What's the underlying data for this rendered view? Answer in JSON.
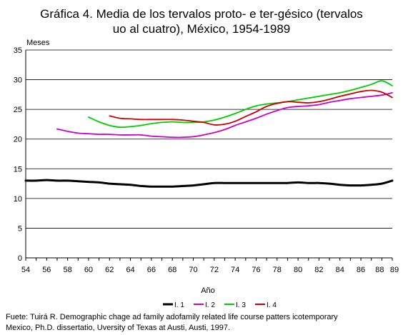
{
  "chart_data": {
    "type": "line",
    "title": "Gráfica 4.  Media de los tervalos proto- e ter-gésico (tervalos",
    "subtitle": "uo al cuatro), México, 1954-1989",
    "ylabel": "Meses",
    "xlabel": "Año",
    "ylim": [
      0,
      35
    ],
    "yticks": [
      "0",
      "5",
      "10",
      "15",
      "20",
      "25",
      "30",
      "35"
    ],
    "xlim": [
      1954,
      1989
    ],
    "xticks": [
      {
        "x": 1954,
        "label": "54"
      },
      {
        "x": 1956,
        "label": "56"
      },
      {
        "x": 1958,
        "label": "58"
      },
      {
        "x": 1960,
        "label": "60"
      },
      {
        "x": 1962,
        "label": "62"
      },
      {
        "x": 1964,
        "label": "64"
      },
      {
        "x": 1966,
        "label": "66"
      },
      {
        "x": 1968,
        "label": "68"
      },
      {
        "x": 1970,
        "label": "70"
      },
      {
        "x": 1972,
        "label": "72"
      },
      {
        "x": 1974,
        "label": "74"
      },
      {
        "x": 1976,
        "label": "76"
      },
      {
        "x": 1978,
        "label": "78"
      },
      {
        "x": 1980,
        "label": "80"
      },
      {
        "x": 1982,
        "label": "82"
      },
      {
        "x": 1984,
        "label": "84"
      },
      {
        "x": 1986,
        "label": "86"
      },
      {
        "x": 1988,
        "label": "88"
      },
      {
        "x": 1989,
        "label": "89"
      }
    ],
    "grid": "horizontal",
    "legend_position": "bottom",
    "series": [
      {
        "name": "I. 1",
        "color": "#000000",
        "x": [
          1954,
          1955,
          1956,
          1957,
          1958,
          1959,
          1960,
          1961,
          1962,
          1963,
          1964,
          1965,
          1966,
          1967,
          1968,
          1969,
          1970,
          1971,
          1972,
          1973,
          1974,
          1975,
          1976,
          1977,
          1978,
          1979,
          1980,
          1981,
          1982,
          1983,
          1984,
          1985,
          1986,
          1987,
          1988,
          1989
        ],
        "values": [
          13.0,
          13.0,
          13.1,
          13.0,
          13.0,
          12.9,
          12.8,
          12.7,
          12.5,
          12.4,
          12.3,
          12.1,
          12.0,
          12.0,
          12.0,
          12.1,
          12.2,
          12.4,
          12.6,
          12.6,
          12.6,
          12.6,
          12.6,
          12.6,
          12.6,
          12.6,
          12.7,
          12.6,
          12.6,
          12.5,
          12.3,
          12.2,
          12.2,
          12.3,
          12.5,
          13.0
        ]
      },
      {
        "name": "I. 2",
        "color": "#cc00cc",
        "x": [
          1957,
          1958,
          1959,
          1960,
          1961,
          1962,
          1963,
          1964,
          1965,
          1966,
          1967,
          1968,
          1969,
          1970,
          1971,
          1972,
          1973,
          1974,
          1975,
          1976,
          1977,
          1978,
          1979,
          1980,
          1981,
          1982,
          1983,
          1984,
          1985,
          1986,
          1987,
          1988,
          1989
        ],
        "values": [
          21.7,
          21.3,
          21.0,
          20.9,
          20.8,
          20.8,
          20.7,
          20.7,
          20.7,
          20.5,
          20.4,
          20.3,
          20.3,
          20.4,
          20.7,
          21.1,
          21.6,
          22.3,
          22.9,
          23.5,
          24.2,
          24.8,
          25.3,
          25.5,
          25.6,
          25.8,
          26.2,
          26.5,
          26.8,
          27.0,
          27.2,
          27.4,
          27.8
        ]
      },
      {
        "name": "I. 3",
        "color": "#00cc00",
        "x": [
          1960,
          1961,
          1962,
          1963,
          1964,
          1965,
          1966,
          1967,
          1968,
          1969,
          1970,
          1971,
          1972,
          1973,
          1974,
          1975,
          1976,
          1977,
          1978,
          1979,
          1980,
          1981,
          1982,
          1983,
          1984,
          1985,
          1986,
          1987,
          1988,
          1989
        ],
        "values": [
          23.7,
          22.9,
          22.3,
          22.0,
          22.1,
          22.3,
          22.6,
          22.8,
          22.9,
          22.8,
          22.8,
          22.9,
          23.2,
          23.7,
          24.3,
          25.0,
          25.6,
          25.9,
          26.1,
          26.3,
          26.6,
          26.9,
          27.2,
          27.5,
          27.8,
          28.2,
          28.7,
          29.2,
          29.8,
          29.0
        ]
      },
      {
        "name": "I. 4",
        "color": "#cc0000",
        "x": [
          1962,
          1963,
          1964,
          1965,
          1966,
          1967,
          1968,
          1969,
          1970,
          1971,
          1972,
          1973,
          1974,
          1975,
          1976,
          1977,
          1978,
          1979,
          1980,
          1981,
          1982,
          1983,
          1984,
          1985,
          1986,
          1987,
          1988,
          1989
        ],
        "values": [
          23.9,
          23.5,
          23.4,
          23.3,
          23.3,
          23.3,
          23.3,
          23.2,
          23.0,
          22.8,
          22.4,
          22.5,
          23.0,
          23.8,
          24.6,
          25.5,
          26.0,
          26.3,
          26.2,
          26.1,
          26.3,
          26.7,
          27.2,
          27.6,
          28.0,
          28.2,
          27.9,
          27.0
        ]
      }
    ]
  },
  "source": {
    "line1": "Fuete: Tuirá R. Demographic chage ad family adofamily related life course patters icotemporary",
    "line2": "Mexico, Ph.D. dissertatio, Uversity of Texas at Austi, Austi, 1997."
  }
}
